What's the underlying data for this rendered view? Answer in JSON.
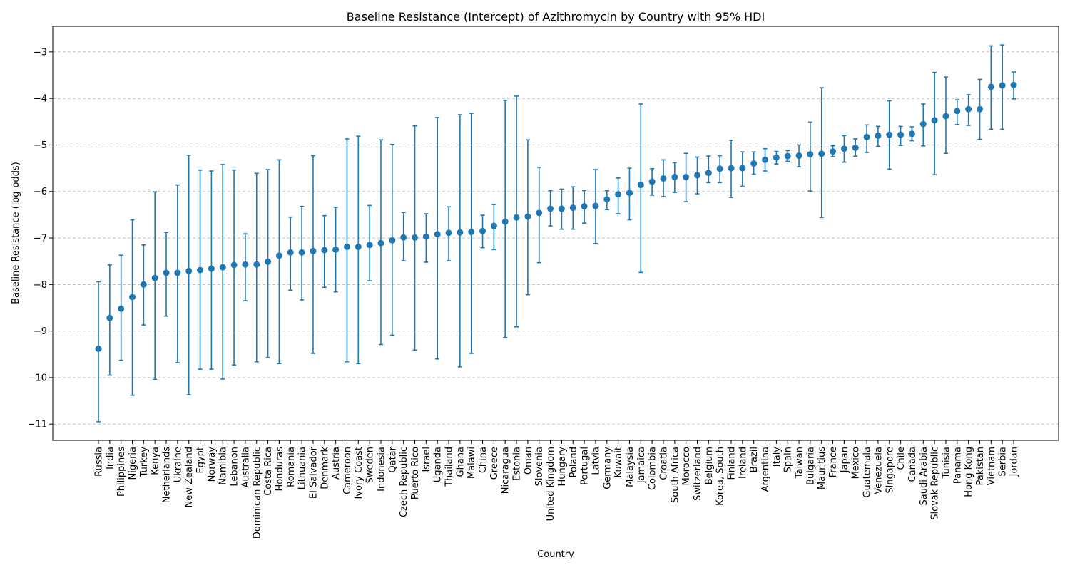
{
  "chart_data": {
    "type": "scatter",
    "title": "Baseline Resistance (Intercept) of Azithromycin by Country with 95% HDI",
    "xlabel": "Country",
    "ylabel": "Baseline Resistance (log-odds)",
    "ylim": [
      -11.35,
      -2.45
    ],
    "yticks": [
      -11,
      -10,
      -9,
      -8,
      -7,
      -6,
      -5,
      -4,
      -3
    ],
    "ytick_labels": [
      "−11",
      "−10",
      "−9",
      "−8",
      "−7",
      "−6",
      "−5",
      "−4",
      "−3"
    ],
    "grid": "y-dashed",
    "color": "#1f77b4",
    "series": [
      {
        "categories": [
          "Russia",
          "India",
          "Philippines",
          "Nigeria",
          "Turkey",
          "Kenya",
          "Netherlands",
          "Ukraine",
          "New Zealand",
          "Egypt",
          "Norway",
          "Namibia",
          "Lebanon",
          "Australia",
          "Dominican Republic",
          "Costa Rica",
          "Honduras",
          "Romania",
          "Lithuania",
          "El Salvador",
          "Denmark",
          "Austria",
          "Cameroon",
          "Ivory Coast",
          "Sweden",
          "Indonesia",
          "Qatar",
          "Czech Republic",
          "Puerto Rico",
          "Israel",
          "Uganda",
          "Thailand",
          "Ghana",
          "Malawi",
          "China",
          "Greece",
          "Nicaragua",
          "Estonia",
          "Oman",
          "Slovenia",
          "United Kingdom",
          "Hungary",
          "Poland",
          "Portugal",
          "Latvia",
          "Germany",
          "Kuwait",
          "Malaysia",
          "Jamaica",
          "Colombia",
          "Croatia",
          "South Africa",
          "Morocco",
          "Switzerland",
          "Belgium",
          "Korea, South",
          "Finland",
          "Ireland",
          "Brazil",
          "Argentina",
          "Italy",
          "Spain",
          "Taiwan",
          "Bulgaria",
          "Mauritius",
          "France",
          "Japan",
          "Mexico",
          "Guatemala",
          "Venezuela",
          "Singapore",
          "Chile",
          "Canada",
          "Saudi Arabia",
          "Slovak Republic",
          "Tunisia",
          "Panama",
          "Hong Kong",
          "Pakistan",
          "Vietnam",
          "Serbia",
          "Jordan"
        ],
        "values": [
          -9.38,
          -8.72,
          -8.52,
          -8.27,
          -8.0,
          -7.86,
          -7.75,
          -7.75,
          -7.71,
          -7.69,
          -7.66,
          -7.63,
          -7.58,
          -7.57,
          -7.57,
          -7.51,
          -7.38,
          -7.31,
          -7.31,
          -7.28,
          -7.26,
          -7.25,
          -7.19,
          -7.19,
          -7.15,
          -7.11,
          -7.05,
          -6.99,
          -6.99,
          -6.97,
          -6.92,
          -6.89,
          -6.88,
          -6.87,
          -6.85,
          -6.74,
          -6.65,
          -6.56,
          -6.54,
          -6.46,
          -6.37,
          -6.37,
          -6.35,
          -6.32,
          -6.31,
          -6.17,
          -6.06,
          -6.03,
          -5.86,
          -5.79,
          -5.72,
          -5.69,
          -5.69,
          -5.65,
          -5.6,
          -5.51,
          -5.5,
          -5.5,
          -5.4,
          -5.32,
          -5.27,
          -5.24,
          -5.23,
          -5.2,
          -5.19,
          -5.14,
          -5.08,
          -5.06,
          -4.83,
          -4.8,
          -4.78,
          -4.78,
          -4.76,
          -4.55,
          -4.47,
          -4.38,
          -4.27,
          -4.23,
          -4.23,
          -3.75,
          -3.72,
          -3.71
        ],
        "lower": [
          -10.95,
          -9.95,
          -9.63,
          -10.38,
          -8.87,
          -10.04,
          -8.68,
          -9.68,
          -10.37,
          -9.82,
          -9.82,
          -10.03,
          -9.73,
          -8.35,
          -9.66,
          -9.57,
          -9.7,
          -8.12,
          -8.33,
          -9.48,
          -8.06,
          -8.16,
          -9.66,
          -9.7,
          -7.92,
          -9.29,
          -9.09,
          -7.49,
          -9.41,
          -7.52,
          -9.6,
          -7.49,
          -9.77,
          -9.48,
          -7.21,
          -7.25,
          -9.14,
          -8.91,
          -8.22,
          -7.53,
          -6.74,
          -6.81,
          -6.81,
          -6.68,
          -7.12,
          -6.39,
          -6.48,
          -6.61,
          -7.74,
          -6.08,
          -6.11,
          -6.02,
          -6.22,
          -6.05,
          -5.81,
          -5.81,
          -6.13,
          -5.89,
          -5.63,
          -5.56,
          -5.41,
          -5.35,
          -5.47,
          -5.99,
          -6.56,
          -5.25,
          -5.37,
          -5.24,
          -5.16,
          -5.03,
          -5.52,
          -5.01,
          -4.91,
          -5.02,
          -5.64,
          -5.18,
          -4.56,
          -4.58,
          -4.88,
          -4.66,
          -4.66,
          -4.01
        ],
        "upper": [
          -7.94,
          -7.58,
          -7.37,
          -6.61,
          -7.15,
          -6.01,
          -6.88,
          -5.86,
          -5.22,
          -5.54,
          -5.56,
          -5.42,
          -5.54,
          -6.91,
          -5.61,
          -5.53,
          -5.32,
          -6.55,
          -6.32,
          -5.23,
          -6.52,
          -6.34,
          -4.87,
          -4.81,
          -6.3,
          -4.89,
          -4.99,
          -6.45,
          -4.59,
          -6.48,
          -4.41,
          -6.33,
          -4.35,
          -4.32,
          -6.51,
          -6.28,
          -4.04,
          -3.95,
          -4.89,
          -5.48,
          -5.98,
          -5.95,
          -5.9,
          -5.98,
          -5.53,
          -5.98,
          -5.71,
          -5.5,
          -4.12,
          -5.51,
          -5.32,
          -5.38,
          -5.18,
          -5.26,
          -5.24,
          -5.23,
          -4.9,
          -5.15,
          -5.15,
          -5.08,
          -5.14,
          -5.12,
          -5.0,
          -4.51,
          -3.77,
          -5.02,
          -4.8,
          -4.87,
          -4.57,
          -4.6,
          -4.05,
          -4.6,
          -4.61,
          -4.12,
          -3.44,
          -3.54,
          -4.03,
          -3.92,
          -3.59,
          -2.87,
          -2.85,
          -3.43
        ]
      }
    ]
  }
}
